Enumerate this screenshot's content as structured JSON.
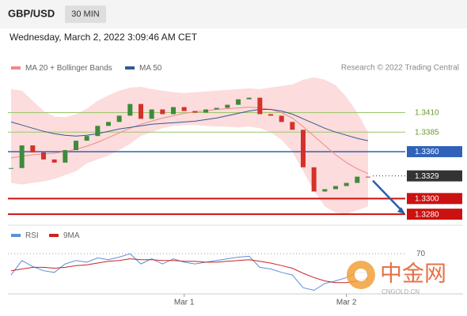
{
  "header": {
    "symbol": "GBP/USD",
    "timeframe": "30 MIN",
    "timestamp": "Wednesday, March 2, 2022 3:09:46 AM CET"
  },
  "watermark": {
    "name": "中金网",
    "site": "CNGOLD.CN"
  },
  "chart_data": [
    {
      "type": "candlestick",
      "source": "Research © 2022 Trading Central",
      "ylim": [
        1.3268,
        1.3458
      ],
      "candles": {
        "up_color": "#3d8b3d",
        "down_color": "#d3322b",
        "close": [
          1.3339,
          1.3368,
          1.3359,
          1.335,
          1.3346,
          1.3362,
          1.3374,
          1.338,
          1.3393,
          1.3398,
          1.3406,
          1.3421,
          1.3402,
          1.3414,
          1.3408,
          1.3417,
          1.3412,
          1.341,
          1.3414,
          1.3416,
          1.342,
          1.3427,
          1.3429,
          1.3408,
          1.3406,
          1.3398,
          1.3388,
          1.334,
          1.3309,
          1.3312,
          1.3316,
          1.332,
          1.3328,
          1.3327
        ]
      },
      "series": [
        {
          "name": "MA 20 + Bollinger Bands",
          "color": "#ee8a8a",
          "band_color": "#fbd3d3",
          "values": [
            1.3352,
            1.3354,
            1.3356,
            1.3357,
            1.3358,
            1.336,
            1.3363,
            1.3367,
            1.3372,
            1.3378,
            1.3384,
            1.339,
            1.3395,
            1.3399,
            1.3403,
            1.3406,
            1.3409,
            1.3411,
            1.3412,
            1.3414,
            1.3415,
            1.3416,
            1.3417,
            1.3416,
            1.3414,
            1.341,
            1.3403,
            1.3392,
            1.338,
            1.3368,
            1.3356,
            1.3346,
            1.3338,
            1.3332
          ],
          "upper": [
            1.344,
            1.3438,
            1.3425,
            1.3412,
            1.3405,
            1.3404,
            1.3408,
            1.3415,
            1.3425,
            1.3432,
            1.3438,
            1.3442,
            1.3443,
            1.344,
            1.3438,
            1.3436,
            1.3435,
            1.3436,
            1.3437,
            1.3438,
            1.3439,
            1.344,
            1.3441,
            1.344,
            1.3442,
            1.3444,
            1.3446,
            1.3452,
            1.3455,
            1.3452,
            1.3445,
            1.343,
            1.341,
            1.3385
          ],
          "lower": [
            1.332,
            1.3318,
            1.332,
            1.3322,
            1.3325,
            1.333,
            1.3335,
            1.3345,
            1.335,
            1.3355,
            1.3362,
            1.337,
            1.338,
            1.3385,
            1.339,
            1.3393,
            1.3394,
            1.3394,
            1.3393,
            1.3392,
            1.3392,
            1.3391,
            1.3392,
            1.339,
            1.3385,
            1.3375,
            1.336,
            1.3335,
            1.331,
            1.329,
            1.3282,
            1.328,
            1.3285,
            1.329
          ]
        },
        {
          "name": "MA 50",
          "color": "#34598f",
          "values": [
            1.3398,
            1.3394,
            1.339,
            1.3386,
            1.3383,
            1.3381,
            1.338,
            1.3381,
            1.3383,
            1.3386,
            1.3389,
            1.3391,
            1.3393,
            1.3395,
            1.3396,
            1.3397,
            1.3398,
            1.3399,
            1.3401,
            1.3403,
            1.3406,
            1.3409,
            1.3412,
            1.3414,
            1.3414,
            1.3412,
            1.3408,
            1.3402,
            1.3396,
            1.339,
            1.3385,
            1.3381,
            1.3377,
            1.3374
          ]
        }
      ],
      "levels": [
        {
          "value": 1.341,
          "label": "1.3410",
          "color": "#9cc66a",
          "style": "plain"
        },
        {
          "value": 1.3385,
          "label": "1.3385",
          "color": "#9cc66a",
          "style": "plain"
        },
        {
          "value": 1.336,
          "label": "1.3360",
          "color": "#2f62b8",
          "style": "box"
        },
        {
          "value": 1.3329,
          "label": "1.3329",
          "color": "#333333",
          "style": "current"
        },
        {
          "value": 1.33,
          "label": "1.3300",
          "color": "#cc1111",
          "style": "box"
        },
        {
          "value": 1.328,
          "label": "1.3280",
          "color": "#cc1111",
          "style": "box"
        }
      ]
    },
    {
      "type": "line",
      "ylim": [
        20,
        85
      ],
      "yticks": [
        70
      ],
      "categories": [
        null,
        null,
        null,
        null,
        null,
        null,
        null,
        null,
        null,
        null,
        null,
        null,
        null,
        null,
        null,
        null,
        "Mar 1",
        null,
        null,
        null,
        null,
        null,
        null,
        null,
        null,
        null,
        null,
        null,
        null,
        null,
        null,
        "Mar 2",
        null,
        null
      ],
      "series": [
        {
          "name": "RSI",
          "color": "#5b8fd9",
          "values": [
            45,
            62,
            55,
            50,
            48,
            58,
            62,
            60,
            65,
            63,
            66,
            70,
            58,
            64,
            58,
            64,
            60,
            58,
            60,
            62,
            64,
            66,
            67,
            54,
            52,
            48,
            45,
            30,
            27,
            35,
            38,
            42,
            48,
            47
          ]
        },
        {
          "name": "9MA",
          "color": "#cc2222",
          "values": [
            50,
            52,
            54,
            54,
            53,
            54,
            56,
            57,
            59,
            61,
            62,
            64,
            63,
            63,
            62,
            62,
            61,
            61,
            60,
            60,
            61,
            62,
            63,
            61,
            59,
            56,
            53,
            47,
            42,
            38,
            36,
            36,
            38,
            41
          ]
        }
      ]
    }
  ]
}
